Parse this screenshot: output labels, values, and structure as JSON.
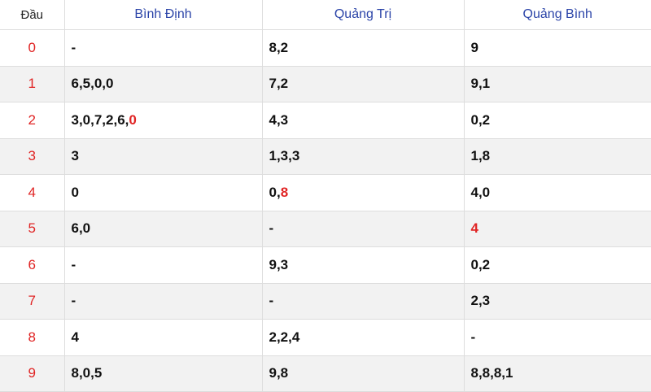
{
  "headers": [
    "Đầu",
    "Bình Định",
    "Quảng Trị",
    "Quảng Bình"
  ],
  "rows": [
    {
      "dau": "0",
      "cells": [
        [
          {
            "t": "-"
          }
        ],
        [
          {
            "t": "8,2"
          }
        ],
        [
          {
            "t": "9"
          }
        ]
      ]
    },
    {
      "dau": "1",
      "cells": [
        [
          {
            "t": "6,5,0,0"
          }
        ],
        [
          {
            "t": "7,2"
          }
        ],
        [
          {
            "t": "9,1"
          }
        ]
      ]
    },
    {
      "dau": "2",
      "cells": [
        [
          {
            "t": "3,0,7,2,6,"
          },
          {
            "t": "0",
            "hl": true
          }
        ],
        [
          {
            "t": "4,3"
          }
        ],
        [
          {
            "t": "0,2"
          }
        ]
      ]
    },
    {
      "dau": "3",
      "cells": [
        [
          {
            "t": "3"
          }
        ],
        [
          {
            "t": "1,3,3"
          }
        ],
        [
          {
            "t": "1,8"
          }
        ]
      ]
    },
    {
      "dau": "4",
      "cells": [
        [
          {
            "t": "0"
          }
        ],
        [
          {
            "t": "0,"
          },
          {
            "t": "8",
            "hl": true
          }
        ],
        [
          {
            "t": "4,0"
          }
        ]
      ]
    },
    {
      "dau": "5",
      "cells": [
        [
          {
            "t": "6,0"
          }
        ],
        [
          {
            "t": "-"
          }
        ],
        [
          {
            "t": "4",
            "hl": true
          }
        ]
      ]
    },
    {
      "dau": "6",
      "cells": [
        [
          {
            "t": "-"
          }
        ],
        [
          {
            "t": "9,3"
          }
        ],
        [
          {
            "t": "0,2"
          }
        ]
      ]
    },
    {
      "dau": "7",
      "cells": [
        [
          {
            "t": "-"
          }
        ],
        [
          {
            "t": "-"
          }
        ],
        [
          {
            "t": "2,3"
          }
        ]
      ]
    },
    {
      "dau": "8",
      "cells": [
        [
          {
            "t": "4"
          }
        ],
        [
          {
            "t": "2,2,4"
          }
        ],
        [
          {
            "t": "-"
          }
        ]
      ]
    },
    {
      "dau": "9",
      "cells": [
        [
          {
            "t": "8,0,5"
          }
        ],
        [
          {
            "t": "9,8"
          }
        ],
        [
          {
            "t": "8,8,8,1"
          }
        ]
      ]
    }
  ],
  "colors": {
    "highlight": "#e02424",
    "header_link": "#2b44a8",
    "alt_row": "#f2f2f2"
  }
}
